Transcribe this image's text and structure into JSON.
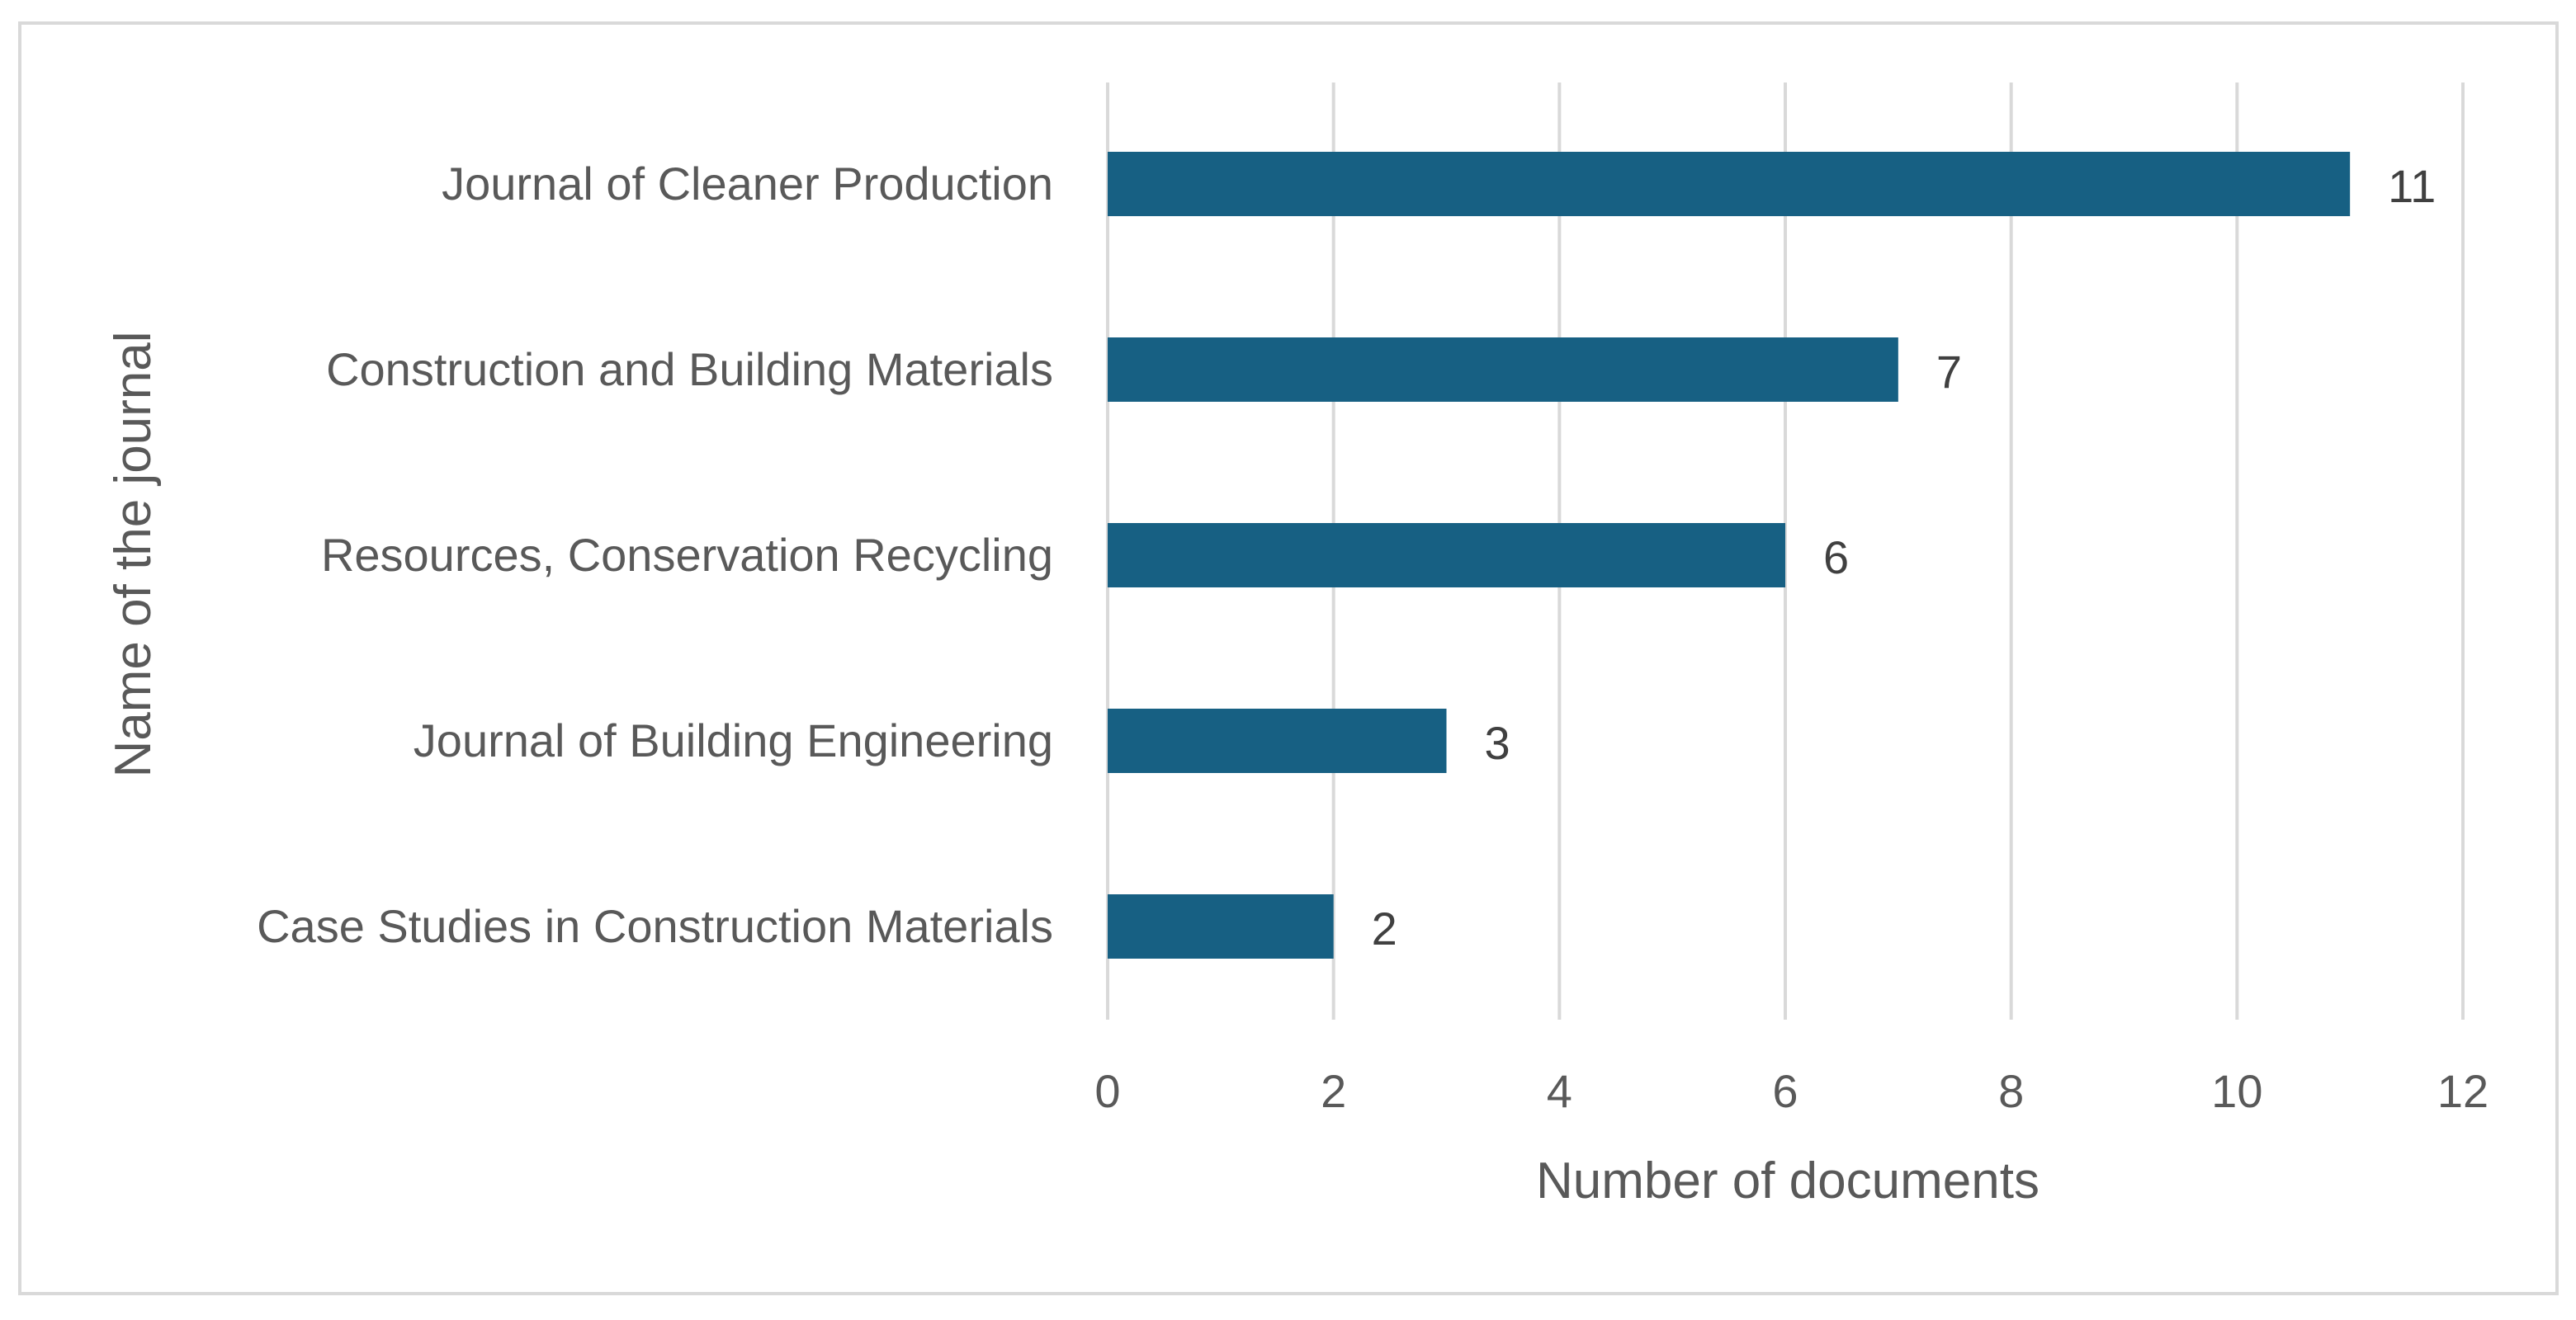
{
  "chart_data": {
    "type": "bar",
    "orientation": "horizontal",
    "categories": [
      "Journal of Cleaner Production",
      "Construction and Building Materials",
      "Resources, Conservation Recycling",
      "Journal of Building Engineering",
      "Case Studies in Construction Materials"
    ],
    "values": [
      11,
      7,
      6,
      3,
      2
    ],
    "xlabel": "Number of documents",
    "ylabel": "Name of the journal",
    "xlim": [
      0,
      12
    ],
    "x_ticks": [
      "0",
      "2",
      "4",
      "6",
      "8",
      "10",
      "12"
    ],
    "data_labels": [
      "11",
      "7",
      "6",
      "3",
      "2"
    ],
    "grid": "vertical",
    "legend": "none",
    "bar_color": "#176083"
  }
}
